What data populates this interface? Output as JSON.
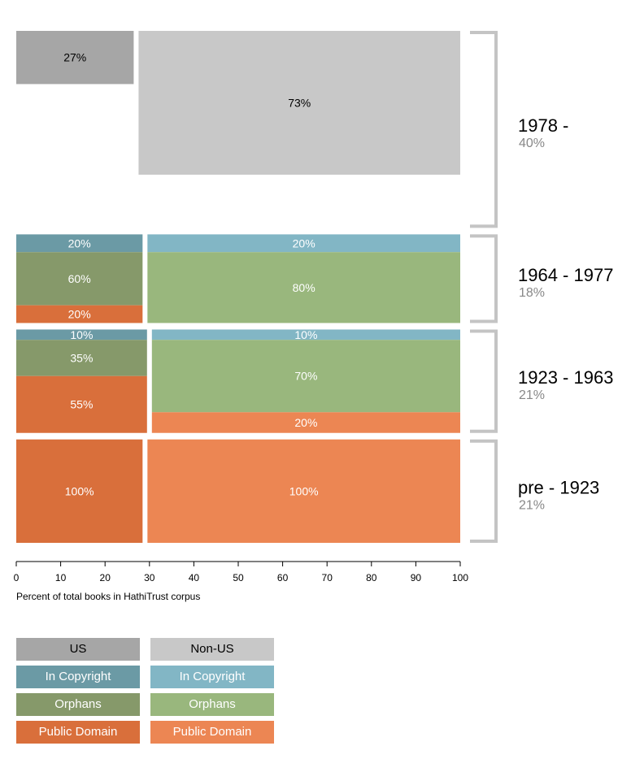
{
  "chart_data": {
    "type": "bar",
    "subtype": "marimekko",
    "xlabel": "Percent of total books in HathiTrust corpus",
    "xlim": [
      0,
      100
    ],
    "x_ticks": [
      "0",
      "10",
      "20",
      "30",
      "40",
      "50",
      "60",
      "70",
      "80",
      "90",
      "100"
    ],
    "colors": {
      "us": "#a6a6a6",
      "nonus": "#c8c8c8",
      "us_copyright": "#6b9aa5",
      "nonus_copyright": "#82b6c5",
      "us_orphans": "#86996a",
      "nonus_orphans": "#99b77d",
      "us_public": "#d96f3b",
      "nonus_public": "#ec8653"
    },
    "periods": [
      {
        "label": "1978 -",
        "share": "40%",
        "share_value": 40,
        "us_width": 27,
        "segments": {
          "us": [
            {
              "category": "US",
              "value": 27,
              "label": "27%",
              "color_key": "us",
              "text_color": "#000000"
            }
          ],
          "nonus": [
            {
              "category": "Non-US",
              "value": 73,
              "label": "73%",
              "color_key": "nonus",
              "text_color": "#000000"
            }
          ]
        }
      },
      {
        "label": "1964 - 1977",
        "share": "18%",
        "share_value": 18,
        "us_width": 29,
        "segments": {
          "us": [
            {
              "category": "In Copyright",
              "value": 20,
              "label": "20%",
              "color_key": "us_copyright",
              "text_color": "#ffffff"
            },
            {
              "category": "Orphans",
              "value": 60,
              "label": "60%",
              "color_key": "us_orphans",
              "text_color": "#ffffff"
            },
            {
              "category": "Public Domain",
              "value": 20,
              "label": "20%",
              "color_key": "us_public",
              "text_color": "#ffffff"
            }
          ],
          "nonus": [
            {
              "category": "In Copyright",
              "value": 20,
              "label": "20%",
              "color_key": "nonus_copyright",
              "text_color": "#ffffff"
            },
            {
              "category": "Orphans",
              "value": 80,
              "label": "80%",
              "color_key": "nonus_orphans",
              "text_color": "#ffffff"
            }
          ]
        }
      },
      {
        "label": "1923 - 1963",
        "share": "21%",
        "share_value": 21,
        "us_width": 30,
        "segments": {
          "us": [
            {
              "category": "In Copyright",
              "value": 10,
              "label": "10%",
              "color_key": "us_copyright",
              "text_color": "#ffffff"
            },
            {
              "category": "Orphans",
              "value": 35,
              "label": "35%",
              "color_key": "us_orphans",
              "text_color": "#ffffff"
            },
            {
              "category": "Public Domain",
              "value": 55,
              "label": "55%",
              "color_key": "us_public",
              "text_color": "#ffffff"
            }
          ],
          "nonus": [
            {
              "category": "In Copyright",
              "value": 10,
              "label": "10%",
              "color_key": "nonus_copyright",
              "text_color": "#ffffff"
            },
            {
              "category": "Orphans",
              "value": 70,
              "label": "70%",
              "color_key": "nonus_orphans",
              "text_color": "#ffffff"
            },
            {
              "category": "Public Domain",
              "value": 20,
              "label": "20%",
              "color_key": "nonus_public",
              "text_color": "#ffffff"
            }
          ]
        }
      },
      {
        "label": "pre - 1923",
        "share": "21%",
        "share_value": 21,
        "us_width": 29,
        "segments": {
          "us": [
            {
              "category": "Public Domain",
              "value": 100,
              "label": "100%",
              "color_key": "us_public",
              "text_color": "#ffffff"
            }
          ],
          "nonus": [
            {
              "category": "Public Domain",
              "value": 100,
              "label": "100%",
              "color_key": "nonus_public",
              "text_color": "#ffffff"
            }
          ]
        }
      }
    ],
    "legend": {
      "placement": "bottom-left",
      "items": [
        {
          "label": "US",
          "color_key": "us",
          "text_color": "#000000"
        },
        {
          "label": "Non-US",
          "color_key": "nonus",
          "text_color": "#000000"
        },
        {
          "label": "In Copyright",
          "color_key": "us_copyright",
          "text_color": "#ffffff"
        },
        {
          "label": "In Copyright",
          "color_key": "nonus_copyright",
          "text_color": "#ffffff"
        },
        {
          "label": "Orphans",
          "color_key": "us_orphans",
          "text_color": "#ffffff"
        },
        {
          "label": "Orphans",
          "color_key": "nonus_orphans",
          "text_color": "#ffffff"
        },
        {
          "label": "Public Domain",
          "color_key": "us_public",
          "text_color": "#ffffff"
        },
        {
          "label": "Public Domain",
          "color_key": "nonus_public",
          "text_color": "#ffffff"
        }
      ]
    }
  }
}
